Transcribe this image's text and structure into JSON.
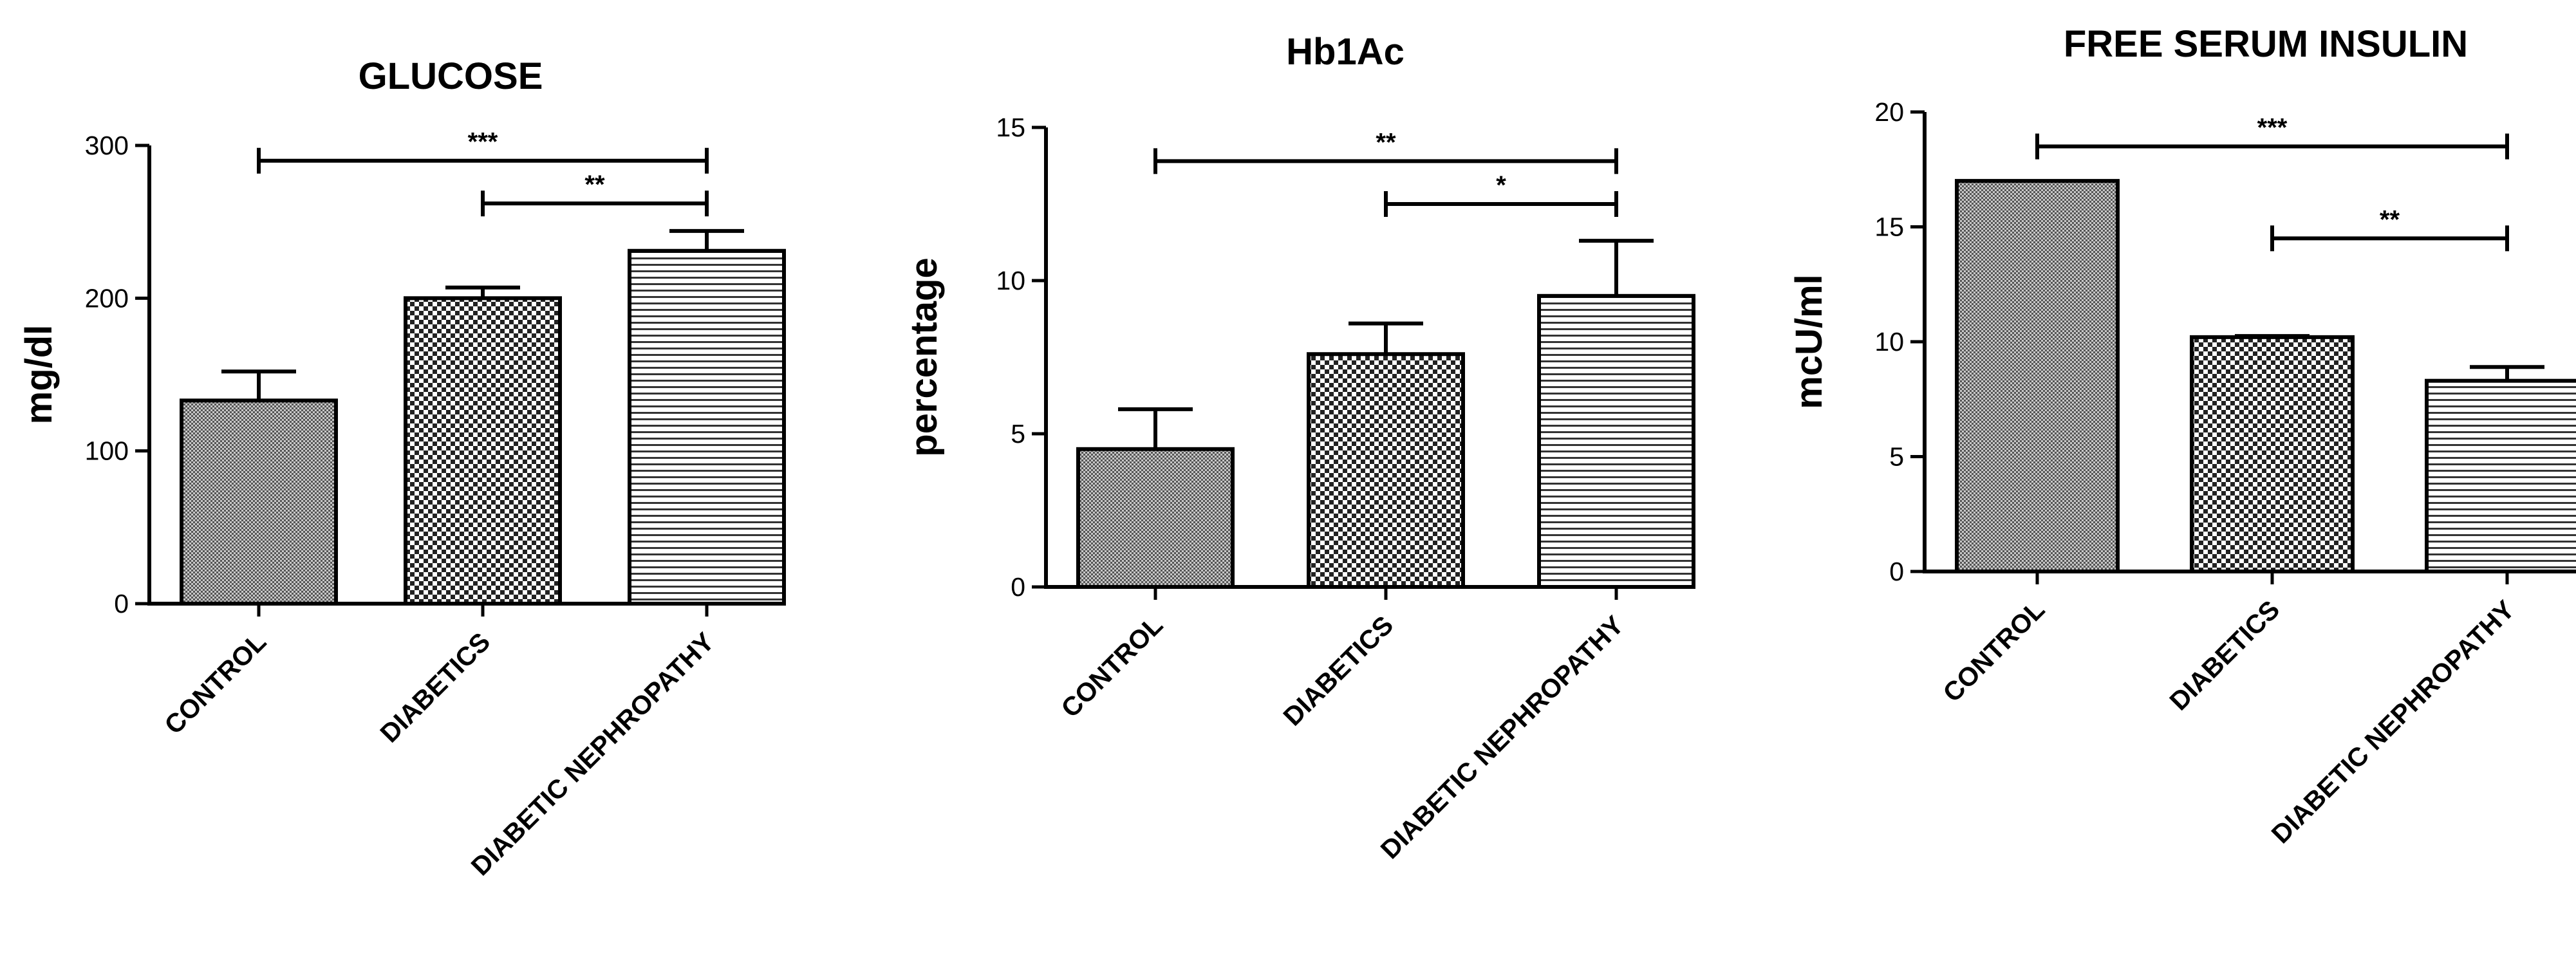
{
  "chart_data": [
    {
      "type": "bar",
      "title": "GLUCOSE",
      "ylabel": "mg/dl",
      "xlabel": "",
      "categories": [
        "CONTROL",
        "DIABETICS",
        "DIABETIC NEPHROPATHY"
      ],
      "values": [
        133,
        200,
        231
      ],
      "errors": [
        19,
        7,
        13
      ],
      "ylim": [
        0,
        300
      ],
      "yticks": [
        0,
        100,
        200,
        300
      ],
      "significance": [
        {
          "from": 0,
          "to": 2,
          "label": "***",
          "y": 290
        },
        {
          "from": 1,
          "to": 2,
          "label": "**",
          "y": 262
        }
      ]
    },
    {
      "type": "bar",
      "title": "Hb1Ac",
      "ylabel": "percentage",
      "xlabel": "",
      "categories": [
        "CONTROL",
        "DIABETICS",
        "DIABETIC NEPHROPATHY"
      ],
      "values": [
        4.5,
        7.6,
        9.5
      ],
      "errors": [
        1.3,
        1.0,
        1.8
      ],
      "ylim": [
        0,
        15
      ],
      "yticks": [
        0,
        5,
        10,
        15
      ],
      "significance": [
        {
          "from": 0,
          "to": 2,
          "label": "**",
          "y": 13.9
        },
        {
          "from": 1,
          "to": 2,
          "label": "*",
          "y": 12.5
        }
      ]
    },
    {
      "type": "bar",
      "title": "FREE SERUM INSULIN",
      "ylabel": "mcU/ml",
      "xlabel": "",
      "categories": [
        "CONTROL",
        "DIABETICS",
        "DIABETIC NEPHROPATHY"
      ],
      "values": [
        17,
        10.2,
        8.3
      ],
      "errors": [
        0,
        0.05,
        0.6
      ],
      "ylim": [
        0,
        20
      ],
      "yticks": [
        0,
        5,
        10,
        15,
        20
      ],
      "significance": [
        {
          "from": 0,
          "to": 2,
          "label": "***",
          "y": 18.5
        },
        {
          "from": 1,
          "to": 2,
          "label": "**",
          "y": 14.5
        }
      ]
    }
  ]
}
